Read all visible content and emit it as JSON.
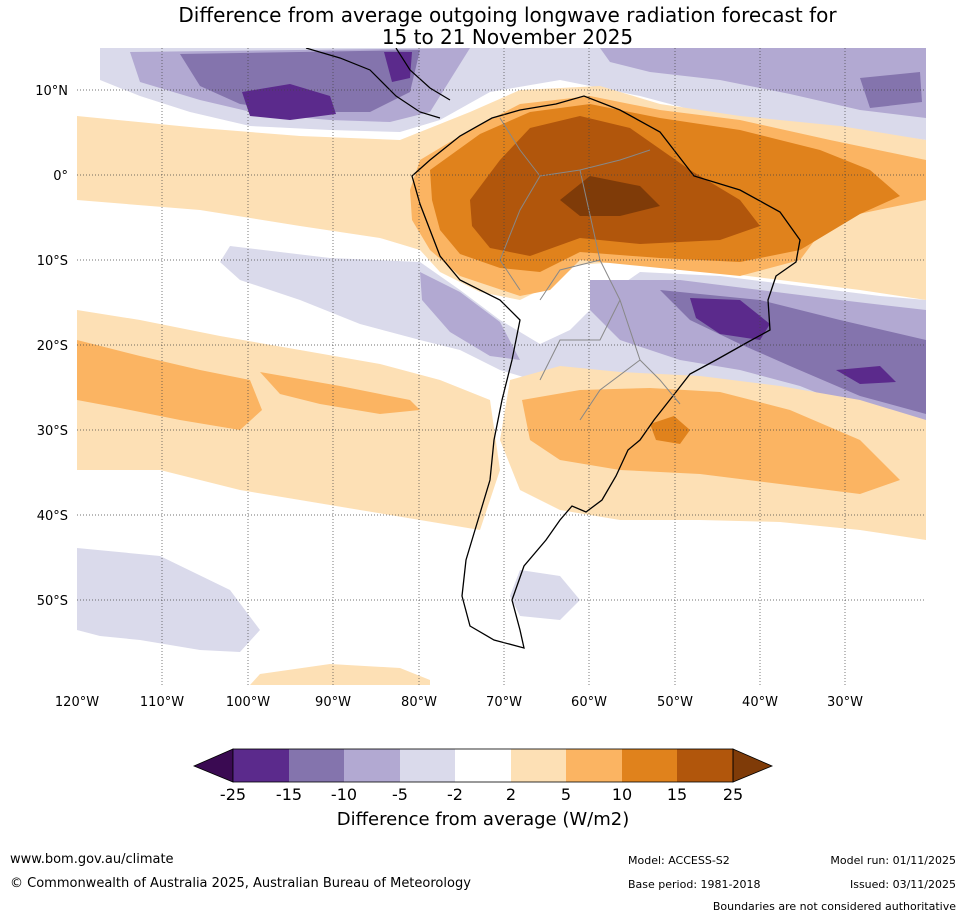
{
  "title": {
    "line1": "Difference from average outgoing longwave radiation forecast for",
    "line2": "15 to 21 November 2025"
  },
  "map": {
    "lon_labels": [
      "120°W",
      "110°W",
      "100°W",
      "90°W",
      "80°W",
      "70°W",
      "60°W",
      "50°W",
      "40°W",
      "30°W"
    ],
    "lat_labels": [
      "10°N",
      "0°",
      "10°S",
      "20°S",
      "30°S",
      "40°S",
      "50°S"
    ],
    "palette": {
      "p25": "#3a0a52",
      "p15": "#5b2a8c",
      "p10": "#8474ad",
      "p5": "#b2a9d2",
      "p2": "#dadaeb",
      "zero": "#ffffff",
      "o2": "#fde0b5",
      "o5": "#fbb462",
      "o10": "#e0821c",
      "o15": "#b1560c",
      "o25": "#7f3b08",
      "coast": "#000000",
      "border": "#888888"
    }
  },
  "colorbar": {
    "tick_labels": [
      "-25",
      "-15",
      "-10",
      "-5",
      "-2",
      "2",
      "5",
      "10",
      "15",
      "25"
    ],
    "title": "Difference from average (W/m2)"
  },
  "footer": {
    "website": "www.bom.gov.au/climate",
    "copyright": "© Commonwealth of Australia 2025, Australian Bureau of Meteorology",
    "model": "Model: ACCESS-S2",
    "base_period": "Base period: 1981-2018",
    "model_run": "Model run: 01/11/2025",
    "issued": "Issued: 03/11/2025",
    "disclaimer": "Boundaries are not considered authoritative"
  }
}
